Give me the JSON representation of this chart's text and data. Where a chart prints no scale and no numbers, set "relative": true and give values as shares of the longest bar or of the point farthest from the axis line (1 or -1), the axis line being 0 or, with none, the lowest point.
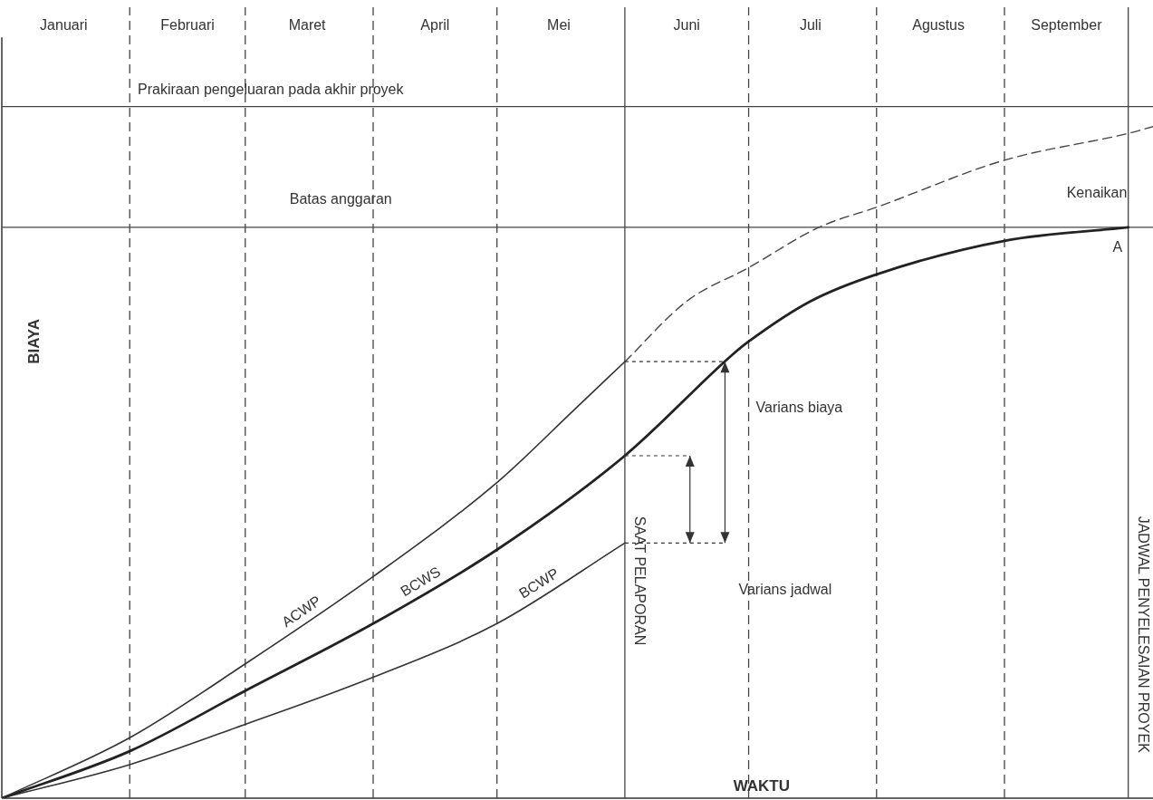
{
  "chart_data": {
    "type": "line",
    "relative": true,
    "xlabel": "WAKTU",
    "ylabel": "BIAYA",
    "xlim": [
      "--01-01",
      "--10-07"
    ],
    "xticks": [
      {
        "value": "--01-16",
        "label": "Januari"
      },
      {
        "value": "--02-15",
        "label": "Februari"
      },
      {
        "value": "--03-16",
        "label": "Maret"
      },
      {
        "value": "--04-16",
        "label": "April"
      },
      {
        "value": "--05-16",
        "label": "Mei"
      },
      {
        "value": "--06-16",
        "label": "Juni"
      },
      {
        "value": "--07-16",
        "label": "Juli"
      },
      {
        "value": "--08-16",
        "label": "Agustus"
      },
      {
        "value": "--09-16",
        "label": "September"
      }
    ],
    "series": [
      {
        "name": "ACWP",
        "color": "#333333",
        "x": [
          "--01-01",
          "--02-01",
          "--03-01",
          "--04-01",
          "--05-01",
          "--05-20",
          "--06-01"
        ],
        "values": [
          0,
          0.09,
          0.2,
          0.33,
          0.47,
          0.58,
          0.65
        ]
      },
      {
        "name": "BCWS",
        "color": "#222222",
        "x": [
          "--01-01",
          "--02-01",
          "--03-01",
          "--04-01",
          "--05-01",
          "--06-01",
          "--06-27",
          "--07-01",
          "--07-16",
          "--08-01",
          "--09-01",
          "--10-01"
        ],
        "values": [
          0,
          0.07,
          0.16,
          0.26,
          0.37,
          0.51,
          0.66,
          0.68,
          0.74,
          0.78,
          0.83,
          0.85
        ]
      },
      {
        "name": "BCWP",
        "color": "#333333",
        "x": [
          "--01-01",
          "--02-01",
          "--03-01",
          "--04-01",
          "--05-01",
          "--06-01"
        ],
        "values": [
          0,
          0.05,
          0.11,
          0.18,
          0.26,
          0.38
        ]
      },
      {
        "color": "#444444",
        "line_style": "dashed",
        "x": [
          "--06-01",
          "--06-16",
          "--07-01",
          "--07-18",
          "--08-01",
          "--09-01",
          "--10-01",
          "--10-07"
        ],
        "values": [
          0.65,
          0.74,
          0.79,
          0.85,
          0.88,
          0.95,
          0.99,
          1
        ]
      }
    ],
    "ref_lines": [
      {
        "axis": "y",
        "value": 1.03,
        "label": "Prakiraan pengeluaran pada akhir proyek",
        "color": "#444444",
        "line_style": "solid"
      },
      {
        "axis": "y",
        "value": 0.85,
        "label": "Batas anggaran",
        "color": "#444444",
        "line_style": "solid"
      },
      {
        "axis": "x",
        "value": "--06-01",
        "label": "SAAT PELAPORAN",
        "color": "#444444",
        "line_style": "solid"
      },
      {
        "axis": "x",
        "value": "--10-01",
        "label": "JADWAL PENYELESAIAN PROYEK",
        "color": "#444444",
        "line_style": "solid"
      },
      {
        "axis": "x",
        "value": "--02-01",
        "color": "#444444",
        "line_style": "dashed"
      },
      {
        "axis": "x",
        "value": "--03-01",
        "color": "#444444",
        "line_style": "dashed"
      },
      {
        "axis": "x",
        "value": "--04-01",
        "color": "#444444",
        "line_style": "dashed"
      },
      {
        "axis": "x",
        "value": "--05-01",
        "color": "#444444",
        "line_style": "dashed"
      },
      {
        "axis": "x",
        "value": "--07-01",
        "color": "#444444",
        "line_style": "dashed"
      },
      {
        "axis": "x",
        "value": "--08-01",
        "color": "#444444",
        "line_style": "dashed"
      },
      {
        "axis": "x",
        "value": "--09-01",
        "color": "#444444",
        "line_style": "dashed"
      }
    ],
    "annotations": [
      "Varians biaya",
      "Varians jadwal",
      "Kenaikan",
      "A"
    ],
    "legend": false,
    "grid": false,
    "marker": "none",
    "line_style": "solid"
  }
}
